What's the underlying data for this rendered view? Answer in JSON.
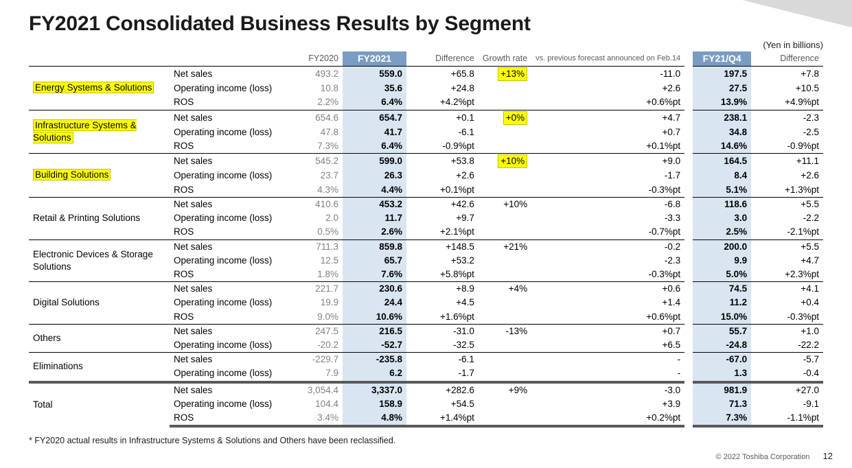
{
  "title": "FY2021 Consolidated Business Results by Segment",
  "unit_note": "(Yen in billions)",
  "footnote": "* FY2020 actual results in Infrastructure Systems & Solutions and Others have been reclassified.",
  "copyright": "© 2022 Toshiba Corporation",
  "page_number": "12",
  "colors": {
    "highlight": "#ffff00",
    "blue_header": "#7b9cc2",
    "blue_cell": "#d9e6f2",
    "gray_text": "#808080",
    "corner": "#d9d9d9",
    "border": "#000000",
    "thick_border": "#595959"
  },
  "headers": {
    "fy2020": "FY2020",
    "fy2021": "FY2021",
    "diff": "Difference",
    "growth": "Growth rate",
    "vs_prev": "vs. previous forecast announced on Feb.14",
    "q4": "FY21/Q4",
    "q4_diff": "Difference"
  },
  "metrics": {
    "net_sales": "Net sales",
    "op_income": "Operating income (loss)",
    "ros": "ROS"
  },
  "segments": [
    {
      "name": "Energy Systems & Solutions",
      "highlight": true,
      "rows": [
        {
          "m": "net_sales",
          "fy20": "493.2",
          "fy21": "559.0",
          "diff": "+65.8",
          "growth": "+13%",
          "growth_hi": true,
          "vs": "-11.0",
          "q4": "197.5",
          "q4d": "+7.8"
        },
        {
          "m": "op_income",
          "fy20": "10.8",
          "fy21": "35.6",
          "diff": "+24.8",
          "growth": "",
          "vs": "+2.6",
          "q4": "27.5",
          "q4d": "+10.5"
        },
        {
          "m": "ros",
          "fy20": "2.2%",
          "fy21": "6.4%",
          "diff": "+4.2%pt",
          "growth": "",
          "vs": "+0.6%pt",
          "q4": "13.9%",
          "q4d": "+4.9%pt"
        }
      ]
    },
    {
      "name": "Infrastructure Systems & Solutions",
      "highlight": true,
      "rows": [
        {
          "m": "net_sales",
          "fy20": "654.6",
          "fy21": "654.7",
          "diff": "+0.1",
          "growth": "+0%",
          "growth_hi": true,
          "vs": "+4.7",
          "q4": "238.1",
          "q4d": "-2.3"
        },
        {
          "m": "op_income",
          "fy20": "47.8",
          "fy21": "41.7",
          "diff": "-6.1",
          "growth": "",
          "vs": "+0.7",
          "q4": "34.8",
          "q4d": "-2.5"
        },
        {
          "m": "ros",
          "fy20": "7.3%",
          "fy21": "6.4%",
          "diff": "-0.9%pt",
          "growth": "",
          "vs": "+0.1%pt",
          "q4": "14.6%",
          "q4d": "-0.9%pt"
        }
      ]
    },
    {
      "name": "Building Solutions",
      "highlight": true,
      "rows": [
        {
          "m": "net_sales",
          "fy20": "545.2",
          "fy21": "599.0",
          "diff": "+53.8",
          "growth": "+10%",
          "growth_hi": true,
          "vs": "+9.0",
          "q4": "164.5",
          "q4d": "+11.1"
        },
        {
          "m": "op_income",
          "fy20": "23.7",
          "fy21": "26.3",
          "diff": "+2.6",
          "growth": "",
          "vs": "-1.7",
          "q4": "8.4",
          "q4d": "+2.6"
        },
        {
          "m": "ros",
          "fy20": "4.3%",
          "fy21": "4.4%",
          "diff": "+0.1%pt",
          "growth": "",
          "vs": "-0.3%pt",
          "q4": "5.1%",
          "q4d": "+1.3%pt"
        }
      ]
    },
    {
      "name": "Retail & Printing Solutions",
      "highlight": false,
      "rows": [
        {
          "m": "net_sales",
          "fy20": "410.6",
          "fy21": "453.2",
          "diff": "+42.6",
          "growth": "+10%",
          "vs": "-6.8",
          "q4": "118.6",
          "q4d": "+5.5"
        },
        {
          "m": "op_income",
          "fy20": "2.0",
          "fy21": "11.7",
          "diff": "+9.7",
          "growth": "",
          "vs": "-3.3",
          "q4": "3.0",
          "q4d": "-2.2"
        },
        {
          "m": "ros",
          "fy20": "0.5%",
          "fy21": "2.6%",
          "diff": "+2.1%pt",
          "growth": "",
          "vs": "-0.7%pt",
          "q4": "2.5%",
          "q4d": "-2.1%pt"
        }
      ]
    },
    {
      "name": "Electronic Devices & Storage Solutions",
      "highlight": false,
      "rows": [
        {
          "m": "net_sales",
          "fy20": "711.3",
          "fy21": "859.8",
          "diff": "+148.5",
          "growth": "+21%",
          "vs": "-0.2",
          "q4": "200.0",
          "q4d": "+5.5"
        },
        {
          "m": "op_income",
          "fy20": "12.5",
          "fy21": "65.7",
          "diff": "+53.2",
          "growth": "",
          "vs": "-2.3",
          "q4": "9.9",
          "q4d": "+4.7"
        },
        {
          "m": "ros",
          "fy20": "1.8%",
          "fy21": "7.6%",
          "diff": "+5.8%pt",
          "growth": "",
          "vs": "-0.3%pt",
          "q4": "5.0%",
          "q4d": "+2.3%pt"
        }
      ]
    },
    {
      "name": "Digital Solutions",
      "highlight": false,
      "rows": [
        {
          "m": "net_sales",
          "fy20": "221.7",
          "fy21": "230.6",
          "diff": "+8.9",
          "growth": "+4%",
          "vs": "+0.6",
          "q4": "74.5",
          "q4d": "+4.1"
        },
        {
          "m": "op_income",
          "fy20": "19.9",
          "fy21": "24.4",
          "diff": "+4.5",
          "growth": "",
          "vs": "+1.4",
          "q4": "11.2",
          "q4d": "+0.4"
        },
        {
          "m": "ros",
          "fy20": "9.0%",
          "fy21": "10.6%",
          "diff": "+1.6%pt",
          "growth": "",
          "vs": "+0.6%pt",
          "q4": "15.0%",
          "q4d": "-0.3%pt"
        }
      ]
    },
    {
      "name": "Others",
      "highlight": false,
      "rows": [
        {
          "m": "net_sales",
          "fy20": "247.5",
          "fy21": "216.5",
          "diff": "-31.0",
          "growth": "-13%",
          "vs": "+0.7",
          "q4": "55.7",
          "q4d": "+1.0"
        },
        {
          "m": "op_income",
          "fy20": "-20.2",
          "fy21": "-52.7",
          "diff": "-32.5",
          "growth": "",
          "vs": "+6.5",
          "q4": "-24.8",
          "q4d": "-22.2"
        }
      ]
    },
    {
      "name": "Eliminations",
      "highlight": false,
      "rows": [
        {
          "m": "net_sales",
          "fy20": "-229.7",
          "fy21": "-235.8",
          "diff": "-6.1",
          "growth": "",
          "vs": "-",
          "q4": "-67.0",
          "q4d": "-5.7"
        },
        {
          "m": "op_income",
          "fy20": "7.9",
          "fy21": "6.2",
          "diff": "-1.7",
          "growth": "",
          "vs": "-",
          "q4": "1.3",
          "q4d": "-0.4"
        }
      ]
    }
  ],
  "total": {
    "name": "Total",
    "rows": [
      {
        "m": "net_sales",
        "fy20": "3,054.4",
        "fy21": "3,337.0",
        "diff": "+282.6",
        "growth": "+9%",
        "vs": "-3.0",
        "q4": "981.9",
        "q4d": "+27.0"
      },
      {
        "m": "op_income",
        "fy20": "104.4",
        "fy21": "158.9",
        "diff": "+54.5",
        "growth": "",
        "vs": "+3.9",
        "q4": "71.3",
        "q4d": "-9.1"
      },
      {
        "m": "ros",
        "fy20": "3.4%",
        "fy21": "4.8%",
        "diff": "+1.4%pt",
        "growth": "",
        "vs": "+0.2%pt",
        "q4": "7.3%",
        "q4d": "-1.1%pt"
      }
    ]
  }
}
